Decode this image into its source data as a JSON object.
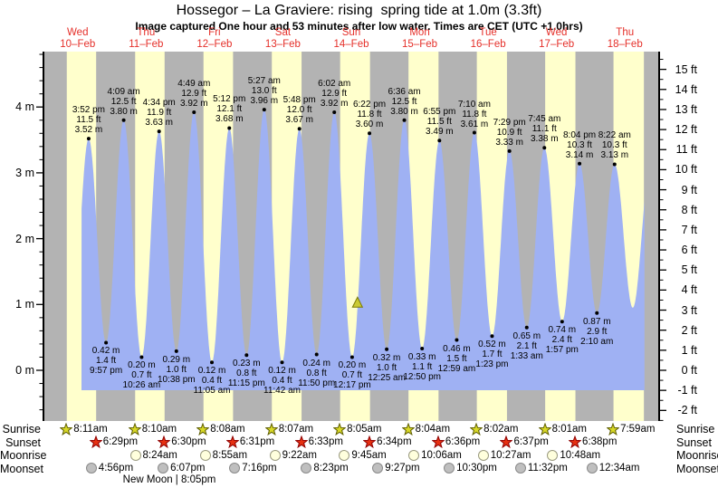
{
  "title": "Hossegor – La Graviere: rising  spring tide at 1.0m (3.3ft)",
  "subtitle": "Image captured One hour and 53 minutes after low water. Times are CET (UTC +1.0hrs)",
  "chart_data": {
    "type": "area",
    "title": "Hossegor – La Graviere: rising  spring tide at 1.0m (3.3ft)",
    "days": [
      {
        "name": "Wed",
        "date": "10–Feb"
      },
      {
        "name": "Thu",
        "date": "11–Feb"
      },
      {
        "name": "Fri",
        "date": "12–Feb"
      },
      {
        "name": "Sat",
        "date": "13–Feb"
      },
      {
        "name": "Sun",
        "date": "14–Feb"
      },
      {
        "name": "Mon",
        "date": "15–Feb"
      },
      {
        "name": "Tue",
        "date": "16–Feb"
      },
      {
        "name": "Wed",
        "date": "17–Feb"
      },
      {
        "name": "Thu",
        "date": "18–Feb"
      }
    ],
    "y_axis": {
      "left": {
        "unit": "m",
        "ticks": [
          0,
          1,
          2,
          3,
          4
        ]
      },
      "right": {
        "unit": "ft",
        "ticks": [
          -2,
          -1,
          0,
          1,
          2,
          3,
          4,
          5,
          6,
          7,
          8,
          9,
          10,
          11,
          12,
          13,
          14,
          15
        ]
      }
    },
    "extremes": [
      {
        "kind": "high",
        "day": 0,
        "time": "3:52 pm",
        "m": "3.52 m",
        "ft": "11.5 ft",
        "height_m": 3.52
      },
      {
        "kind": "low",
        "day": 0,
        "time": "9:57 pm",
        "m": "0.42 m",
        "ft": "1.4 ft",
        "height_m": 0.42
      },
      {
        "kind": "high",
        "day": 1,
        "time": "4:09 am",
        "m": "3.80 m",
        "ft": "12.5 ft",
        "height_m": 3.8
      },
      {
        "kind": "low",
        "day": 1,
        "time": "10:26 am",
        "m": "0.20 m",
        "ft": "0.7 ft",
        "height_m": 0.2
      },
      {
        "kind": "high",
        "day": 1,
        "time": "4:34 pm",
        "m": "3.63 m",
        "ft": "11.9 ft",
        "height_m": 3.63
      },
      {
        "kind": "low",
        "day": 1,
        "time": "10:38 pm",
        "m": "0.29 m",
        "ft": "1.0 ft",
        "height_m": 0.29
      },
      {
        "kind": "high",
        "day": 2,
        "time": "4:49 am",
        "m": "3.92 m",
        "ft": "12.9 ft",
        "height_m": 3.92
      },
      {
        "kind": "low",
        "day": 2,
        "time": "11:05 am",
        "m": "0.12 m",
        "ft": "0.4 ft",
        "height_m": 0.12
      },
      {
        "kind": "high",
        "day": 2,
        "time": "5:12 pm",
        "m": "3.68 m",
        "ft": "12.1 ft",
        "height_m": 3.68
      },
      {
        "kind": "low",
        "day": 2,
        "time": "11:15 pm",
        "m": "0.23 m",
        "ft": "0.8 ft",
        "height_m": 0.23
      },
      {
        "kind": "high",
        "day": 3,
        "time": "5:27 am",
        "m": "3.96 m",
        "ft": "13.0 ft",
        "height_m": 3.96
      },
      {
        "kind": "low",
        "day": 3,
        "time": "11:42 am",
        "m": "0.12 m",
        "ft": "0.4 ft",
        "height_m": 0.12
      },
      {
        "kind": "high",
        "day": 3,
        "time": "5:48 pm",
        "m": "3.67 m",
        "ft": "12.0 ft",
        "height_m": 3.67
      },
      {
        "kind": "low",
        "day": 3,
        "time": "11:50 pm",
        "m": "0.24 m",
        "ft": "0.8 ft",
        "height_m": 0.24
      },
      {
        "kind": "high",
        "day": 4,
        "time": "6:02 am",
        "m": "3.92 m",
        "ft": "12.9 ft",
        "height_m": 3.92
      },
      {
        "kind": "low",
        "day": 4,
        "time": "12:17 pm",
        "m": "0.20 m",
        "ft": "0.7 ft",
        "height_m": 0.2
      },
      {
        "kind": "high",
        "day": 4,
        "time": "6:22 pm",
        "m": "3.60 m",
        "ft": "11.8 ft",
        "height_m": 3.6
      },
      {
        "kind": "low",
        "day": 5,
        "time": "12:25 am",
        "m": "0.32 m",
        "ft": "1.0 ft",
        "height_m": 0.32
      },
      {
        "kind": "high",
        "day": 5,
        "time": "6:36 am",
        "m": "3.80 m",
        "ft": "12.5 ft",
        "height_m": 3.8
      },
      {
        "kind": "low",
        "day": 5,
        "time": "12:50 pm",
        "m": "0.33 m",
        "ft": "1.1 ft",
        "height_m": 0.33
      },
      {
        "kind": "high",
        "day": 5,
        "time": "6:55 pm",
        "m": "3.49 m",
        "ft": "11.5 ft",
        "height_m": 3.49
      },
      {
        "kind": "low",
        "day": 6,
        "time": "12:59 am",
        "m": "0.46 m",
        "ft": "1.5 ft",
        "height_m": 0.46
      },
      {
        "kind": "high",
        "day": 6,
        "time": "7:10 am",
        "m": "3.61 m",
        "ft": "11.8 ft",
        "height_m": 3.61
      },
      {
        "kind": "low",
        "day": 6,
        "time": "1:23 pm",
        "m": "0.52 m",
        "ft": "1.7 ft",
        "height_m": 0.52
      },
      {
        "kind": "high",
        "day": 6,
        "time": "7:29 pm",
        "m": "3.33 m",
        "ft": "10.9 ft",
        "height_m": 3.33
      },
      {
        "kind": "low",
        "day": 7,
        "time": "1:33 am",
        "m": "0.65 m",
        "ft": "2.1 ft",
        "height_m": 0.65
      },
      {
        "kind": "high",
        "day": 7,
        "time": "7:45 am",
        "m": "3.38 m",
        "ft": "11.1 ft",
        "height_m": 3.38
      },
      {
        "kind": "low",
        "day": 7,
        "time": "1:57 pm",
        "m": "0.74 m",
        "ft": "2.4 ft",
        "height_m": 0.74
      },
      {
        "kind": "high",
        "day": 7,
        "time": "8:04 pm",
        "m": "3.14 m",
        "ft": "10.3 ft",
        "height_m": 3.14
      },
      {
        "kind": "low",
        "day": 8,
        "time": "2:10 am",
        "m": "0.87 m",
        "ft": "2.9 ft",
        "height_m": 0.87
      },
      {
        "kind": "high",
        "day": 8,
        "time": "8:22 am",
        "m": "3.13 m",
        "ft": "10.3 ft",
        "height_m": 3.13
      }
    ],
    "current_marker": {
      "day": 4,
      "time": "2:10 pm",
      "height_m": 1.0
    },
    "colors": {
      "night_band": "#b3b3b3",
      "day_band": "#ffffcc",
      "water": "#9fb1f3",
      "date_text": "#e5302a",
      "sunrise_star": "#d8d827",
      "sunrise_star_stroke": "#5e5e00",
      "sunset_star": "#e53012",
      "sunset_star_stroke": "#8f0000",
      "moonrise_moon": "#ffffdd",
      "moonrise_moon_stroke": "#9a9a80",
      "moonset_moon": "#bfbfbf",
      "moonset_moon_stroke": "#8a8a8a",
      "marker_fill": "#caca33",
      "marker_stroke": "#7a7a00"
    }
  },
  "almanac": {
    "rows": [
      {
        "label": "Sunrise",
        "icon": "sunrise-star",
        "entries": [
          {
            "day": 0,
            "time": "8:11am"
          },
          {
            "day": 1,
            "time": "8:10am"
          },
          {
            "day": 2,
            "time": "8:08am"
          },
          {
            "day": 3,
            "time": "8:07am"
          },
          {
            "day": 4,
            "time": "8:05am"
          },
          {
            "day": 5,
            "time": "8:04am"
          },
          {
            "day": 6,
            "time": "8:02am"
          },
          {
            "day": 7,
            "time": "8:01am"
          },
          {
            "day": 8,
            "time": "7:59am"
          }
        ]
      },
      {
        "label": "Sunset",
        "icon": "sunset-star",
        "entries": [
          {
            "day": 0,
            "time": "6:29pm"
          },
          {
            "day": 1,
            "time": "6:30pm"
          },
          {
            "day": 2,
            "time": "6:31pm"
          },
          {
            "day": 3,
            "time": "6:33pm"
          },
          {
            "day": 4,
            "time": "6:34pm"
          },
          {
            "day": 5,
            "time": "6:36pm"
          },
          {
            "day": 6,
            "time": "6:37pm"
          },
          {
            "day": 7,
            "time": "6:38pm"
          }
        ]
      },
      {
        "label": "Moonrise",
        "icon": "moonrise-moon",
        "entries": [
          {
            "day": 1,
            "time": "8:24am"
          },
          {
            "day": 2,
            "time": "8:55am"
          },
          {
            "day": 3,
            "time": "9:22am"
          },
          {
            "day": 4,
            "time": "9:45am"
          },
          {
            "day": 5,
            "time": "10:06am"
          },
          {
            "day": 6,
            "time": "10:27am"
          },
          {
            "day": 7,
            "time": "10:48am"
          }
        ]
      },
      {
        "label": "Moonset",
        "icon": "moonset-moon",
        "entries": [
          {
            "day": 0,
            "time": "4:56pm"
          },
          {
            "day": 1,
            "time": "6:07pm"
          },
          {
            "day": 2,
            "time": "7:16pm"
          },
          {
            "day": 3,
            "time": "8:23pm"
          },
          {
            "day": 4,
            "time": "9:27pm"
          },
          {
            "day": 5,
            "time": "10:30pm"
          },
          {
            "day": 6,
            "time": "11:32pm"
          },
          {
            "day": 8,
            "time": "12:34am"
          }
        ]
      }
    ],
    "moon_phase": {
      "text": "New Moon | 8:05pm",
      "day": 1,
      "time": "8:05pm"
    }
  }
}
